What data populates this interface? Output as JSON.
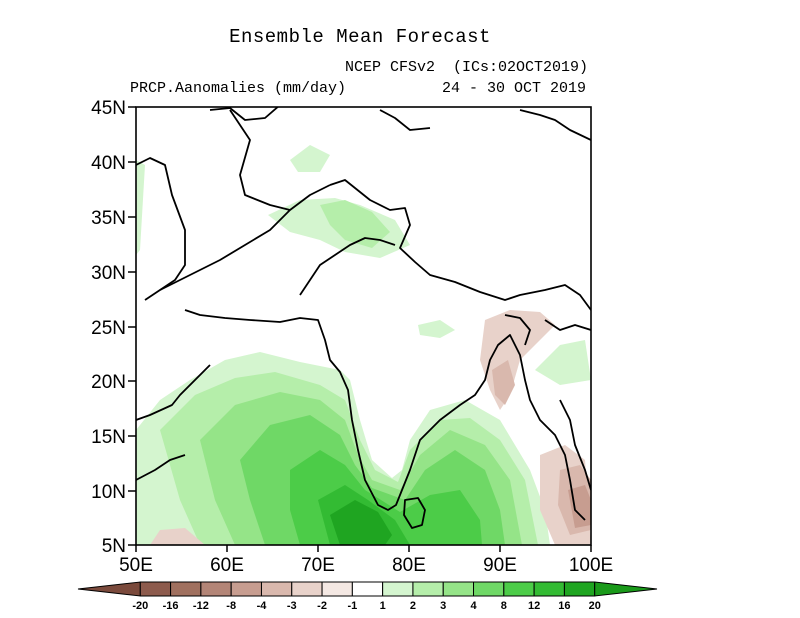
{
  "header": {
    "title": "Ensemble Mean Forecast",
    "model": "NCEP CFSv2",
    "ics": "(ICs:02OCT2019)",
    "variable": "PRCP.Aanomalies (mm/day)",
    "period": "24 - 30 OCT 2019"
  },
  "map": {
    "region": "South Asia",
    "lat_ticks": [
      "45N",
      "40N",
      "35N",
      "30N",
      "25N",
      "20N",
      "15N",
      "10N",
      "5N"
    ],
    "lon_ticks": [
      "50E",
      "60E",
      "70E",
      "80E",
      "90E",
      "100E"
    ],
    "lat_range": [
      5,
      45
    ],
    "lon_range": [
      50,
      100
    ]
  },
  "colorbar": {
    "labels": [
      "-20",
      "-16",
      "-12",
      "-8",
      "-4",
      "-3",
      "-2",
      "-1",
      "1",
      "2",
      "3",
      "4",
      "8",
      "12",
      "16",
      "20"
    ],
    "colors": [
      "#7b4a3c",
      "#8d5b4d",
      "#a0705f",
      "#b38577",
      "#c79d90",
      "#d9b8ad",
      "#e8d2ca",
      "#f4e8e3",
      "#ffffff",
      "#d4f5cf",
      "#b5eeaa",
      "#95e488",
      "#6fd866",
      "#4ccc48",
      "#33bb33",
      "#1fa521",
      "#1a9a1a"
    ]
  }
}
